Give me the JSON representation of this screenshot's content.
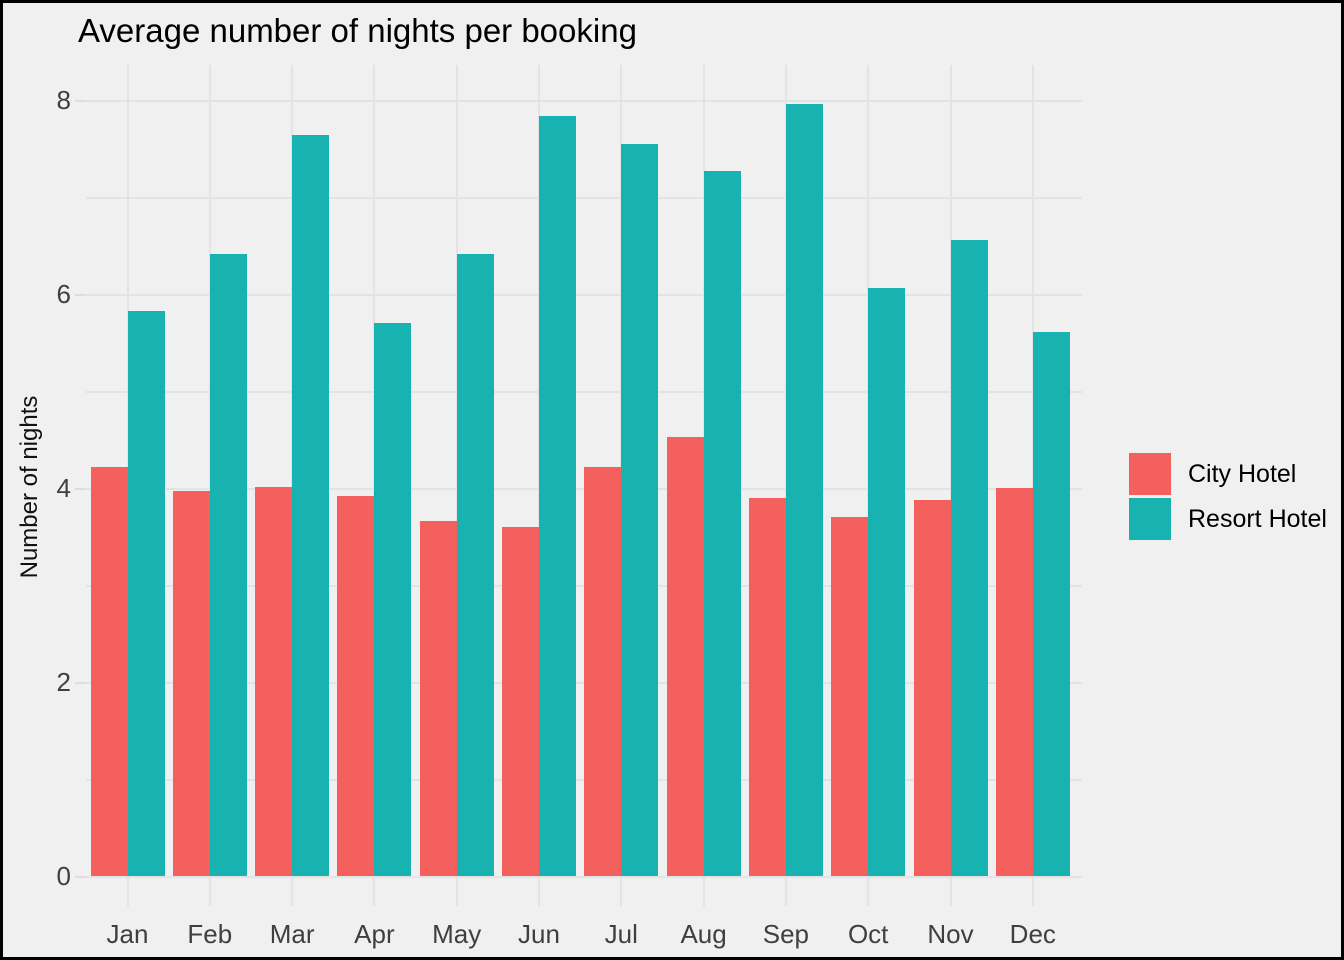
{
  "chart_data": {
    "type": "bar",
    "title": "Average number of nights per booking",
    "xlabel": "",
    "ylabel": "Number of nights",
    "categories": [
      "Jan",
      "Feb",
      "Mar",
      "Apr",
      "May",
      "Jun",
      "Jul",
      "Aug",
      "Sep",
      "Oct",
      "Nov",
      "Dec"
    ],
    "series": [
      {
        "name": "City Hotel",
        "color": "#f4605d",
        "values": [
          4.22,
          3.97,
          4.01,
          3.92,
          3.66,
          3.6,
          4.22,
          4.53,
          3.9,
          3.7,
          3.88,
          4.0
        ]
      },
      {
        "name": "Resort Hotel",
        "color": "#18b2b0",
        "values": [
          5.82,
          6.41,
          7.64,
          5.7,
          6.41,
          7.83,
          7.55,
          7.27,
          7.96,
          6.06,
          6.56,
          5.61
        ]
      }
    ],
    "y_ticks": [
      0,
      2,
      4,
      6,
      8
    ],
    "ylim": [
      0,
      8
    ],
    "grid": true,
    "gridline_step": 1,
    "legend_position": "right",
    "colors": {
      "background": "#f0f0f0",
      "gridline": "#e3e3e3",
      "tick_label": "#3f3f3f",
      "text": "#000000"
    }
  }
}
